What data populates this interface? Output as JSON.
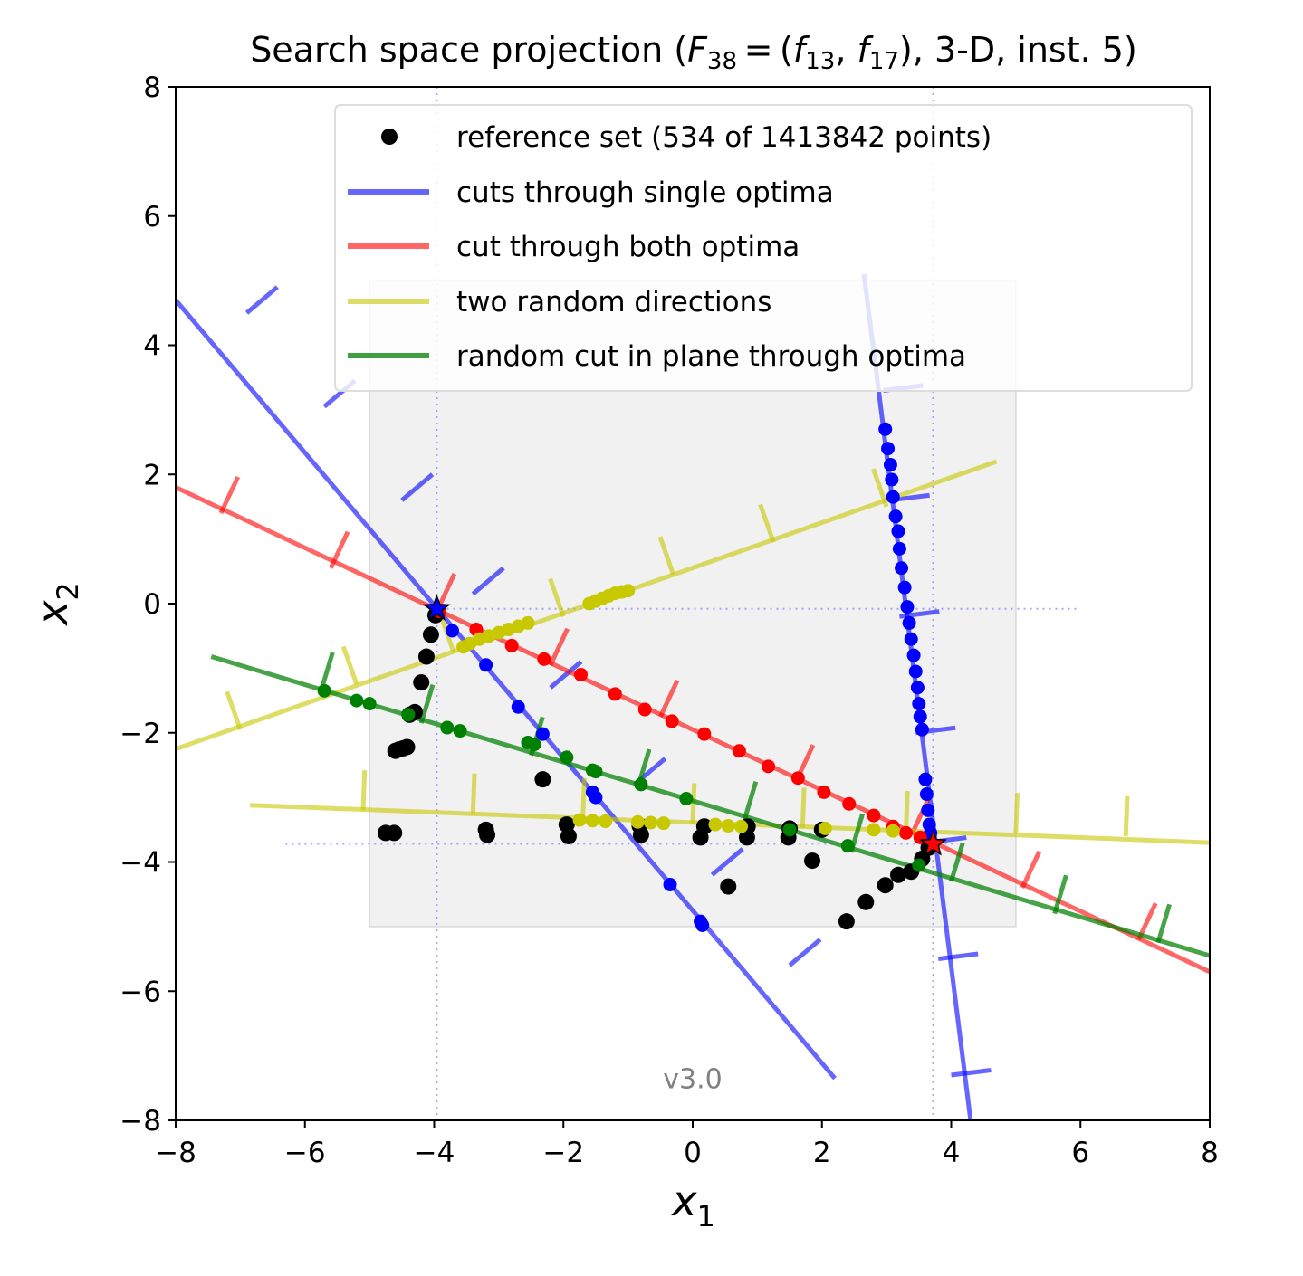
{
  "chart_data": {
    "type": "scatter",
    "title_parts": {
      "prefix": "Search space projection (",
      "F": "F",
      "F_sub": "38",
      "eq": " = (",
      "f1": "f",
      "f1_sub": "13",
      "comma": ", ",
      "f2": "f",
      "f2_sub": "17",
      "suffix": "), 3-D, inst. 5)"
    },
    "xlabel": "x",
    "xlabel_sub": "1",
    "ylabel": "x",
    "ylabel_sub": "2",
    "xlim": [
      -8,
      8
    ],
    "ylim": [
      -8,
      8
    ],
    "xticks": [
      -8,
      -6,
      -4,
      -2,
      0,
      2,
      4,
      6,
      8
    ],
    "yticks": [
      -8,
      -6,
      -4,
      -2,
      0,
      2,
      4,
      6,
      8
    ],
    "xtick_labels": [
      "−8",
      "−6",
      "−4",
      "−2",
      "0",
      "2",
      "4",
      "6",
      "8"
    ],
    "ytick_labels": [
      "−8",
      "−6",
      "−4",
      "−2",
      "0",
      "2",
      "4",
      "6",
      "8"
    ],
    "grid": false,
    "legend_position": "top-right",
    "watermark": "v3.0",
    "region_of_interest": {
      "x": [
        -5,
        5
      ],
      "y": [
        -5,
        5
      ]
    },
    "optima": [
      {
        "x": -3.96,
        "y": -0.08,
        "color": "#0000ff"
      },
      {
        "x": 3.72,
        "y": -3.72,
        "color": "#ff0000"
      }
    ],
    "optima_guides": {
      "x_values": [
        -3.96,
        3.72
      ],
      "y_values": [
        -0.08,
        -3.72
      ]
    },
    "series": [
      {
        "name": "reference set (534 of 1413842 points)",
        "color": "#000000",
        "marker": "dot",
        "points": [
          [
            -3.98,
            -0.18
          ],
          [
            -4.05,
            -0.48
          ],
          [
            -4.12,
            -0.82
          ],
          [
            -4.2,
            -1.22
          ],
          [
            -4.3,
            -1.68
          ],
          [
            -4.38,
            -1.72
          ],
          [
            -4.42,
            -2.22
          ],
          [
            -4.48,
            -2.24
          ],
          [
            -4.55,
            -2.26
          ],
          [
            -4.6,
            -2.28
          ],
          [
            -4.62,
            -3.55
          ],
          [
            -4.75,
            -3.55
          ],
          [
            -3.2,
            -3.5
          ],
          [
            -3.18,
            -3.58
          ],
          [
            -1.95,
            -3.42
          ],
          [
            -1.92,
            -3.6
          ],
          [
            -0.82,
            -3.44
          ],
          [
            -0.8,
            -3.58
          ],
          [
            0.18,
            -3.45
          ],
          [
            0.12,
            -3.62
          ],
          [
            0.85,
            -3.45
          ],
          [
            0.84,
            -3.62
          ],
          [
            1.5,
            -3.48
          ],
          [
            1.48,
            -3.62
          ],
          [
            2.0,
            -3.5
          ],
          [
            1.85,
            -3.98
          ],
          [
            -2.32,
            -2.72
          ],
          [
            0.55,
            -4.38
          ],
          [
            2.38,
            -4.92
          ],
          [
            2.68,
            -4.62
          ],
          [
            2.98,
            -4.36
          ],
          [
            3.18,
            -4.2
          ],
          [
            3.38,
            -4.15
          ],
          [
            3.55,
            -3.95
          ],
          [
            3.65,
            -3.78
          ]
        ]
      },
      {
        "name": "cuts through single optima",
        "color": "#0000ff",
        "marker": "line",
        "points": [
          [
            -3.72,
            -0.42
          ],
          [
            -3.2,
            -0.95
          ],
          [
            -2.7,
            -1.6
          ],
          [
            -2.32,
            -2.02
          ],
          [
            -1.55,
            -2.92
          ],
          [
            -1.5,
            -3.0
          ],
          [
            -0.35,
            -4.35
          ],
          [
            0.12,
            -4.92
          ],
          [
            0.15,
            -4.98
          ],
          [
            2.98,
            2.7
          ],
          [
            3.02,
            2.4
          ],
          [
            3.06,
            2.15
          ],
          [
            3.08,
            1.92
          ],
          [
            3.1,
            1.65
          ],
          [
            3.14,
            1.35
          ],
          [
            3.18,
            1.12
          ],
          [
            3.2,
            0.85
          ],
          [
            3.23,
            0.55
          ],
          [
            3.28,
            0.25
          ],
          [
            3.32,
            -0.05
          ],
          [
            3.35,
            -0.3
          ],
          [
            3.38,
            -0.55
          ],
          [
            3.42,
            -0.8
          ],
          [
            3.45,
            -1.05
          ],
          [
            3.48,
            -1.3
          ],
          [
            3.5,
            -1.55
          ],
          [
            3.52,
            -1.75
          ],
          [
            3.55,
            -1.95
          ],
          [
            3.6,
            -2.72
          ],
          [
            3.62,
            -2.95
          ],
          [
            3.64,
            -3.2
          ],
          [
            3.66,
            -3.42
          ],
          [
            3.68,
            -3.55
          ]
        ]
      },
      {
        "name": "cut through both optima",
        "color": "#ff0000",
        "marker": "line",
        "points": [
          [
            -3.92,
            -0.12
          ],
          [
            -3.35,
            -0.4
          ],
          [
            -2.8,
            -0.65
          ],
          [
            -2.3,
            -0.86
          ],
          [
            -1.73,
            -1.1
          ],
          [
            -1.2,
            -1.4
          ],
          [
            -0.74,
            -1.64
          ],
          [
            -0.32,
            -1.82
          ],
          [
            0.18,
            -2.02
          ],
          [
            0.72,
            -2.28
          ],
          [
            1.17,
            -2.52
          ],
          [
            1.63,
            -2.7
          ],
          [
            2.03,
            -2.92
          ],
          [
            2.42,
            -3.1
          ],
          [
            2.8,
            -3.28
          ],
          [
            3.1,
            -3.45
          ],
          [
            3.3,
            -3.55
          ],
          [
            3.52,
            -3.62
          ]
        ]
      },
      {
        "name": "two random directions",
        "color": "#c8c800",
        "marker": "line",
        "points": [
          [
            -3.55,
            -0.67
          ],
          [
            -3.45,
            -0.62
          ],
          [
            -3.3,
            -0.55
          ],
          [
            -3.15,
            -0.5
          ],
          [
            -3.0,
            -0.45
          ],
          [
            -2.85,
            -0.4
          ],
          [
            -2.7,
            -0.35
          ],
          [
            -2.55,
            -0.3
          ],
          [
            -1.6,
            0.0
          ],
          [
            -1.5,
            0.04
          ],
          [
            -1.4,
            0.08
          ],
          [
            -1.3,
            0.12
          ],
          [
            -1.2,
            0.16
          ],
          [
            -1.1,
            0.18
          ],
          [
            -1.0,
            0.2
          ],
          [
            -1.75,
            -3.35
          ],
          [
            -1.55,
            -3.36
          ],
          [
            -1.35,
            -3.37
          ],
          [
            -0.85,
            -3.38
          ],
          [
            -0.65,
            -3.39
          ],
          [
            -0.45,
            -3.4
          ],
          [
            0.35,
            -3.42
          ],
          [
            0.55,
            -3.44
          ],
          [
            0.75,
            -3.45
          ],
          [
            2.05,
            -3.48
          ],
          [
            2.8,
            -3.5
          ],
          [
            3.1,
            -3.52
          ]
        ]
      },
      {
        "name": "random cut in plane through optima",
        "color": "#008000",
        "marker": "line",
        "points": [
          [
            -5.7,
            -1.35
          ],
          [
            -5.2,
            -1.5
          ],
          [
            -5.0,
            -1.55
          ],
          [
            -4.4,
            -1.72
          ],
          [
            -3.8,
            -1.92
          ],
          [
            -3.6,
            -1.97
          ],
          [
            -2.55,
            -2.15
          ],
          [
            -2.45,
            -2.18
          ],
          [
            -1.95,
            -2.38
          ],
          [
            -1.55,
            -2.58
          ],
          [
            -1.5,
            -2.6
          ],
          [
            -0.8,
            -2.8
          ],
          [
            -0.1,
            -3.02
          ],
          [
            1.5,
            -3.5
          ],
          [
            2.4,
            -3.75
          ],
          [
            3.5,
            -4.05
          ]
        ]
      }
    ],
    "cut_lines": [
      {
        "color": "#0000ff",
        "points": [
          [
            -8,
            4.7
          ],
          [
            2.2,
            -7.35
          ]
        ],
        "ticks": [
          [
            -6.9,
            4.5
          ],
          [
            -5.7,
            3.05
          ],
          [
            -4.5,
            1.6
          ],
          [
            -3.4,
            0.15
          ],
          [
            -2.2,
            -1.3
          ],
          [
            -0.9,
            -2.8
          ],
          [
            0.3,
            -4.2
          ],
          [
            1.5,
            -5.6
          ]
        ]
      },
      {
        "color": "#0000ff",
        "points": [
          [
            2.65,
            5.1
          ],
          [
            4.3,
            -8.0
          ]
        ],
        "ticks": [
          [
            2.95,
            3.3
          ],
          [
            3.05,
            1.6
          ],
          [
            3.2,
            -0.2
          ],
          [
            3.45,
            -2.0
          ],
          [
            3.62,
            -3.7
          ],
          [
            3.8,
            -5.5
          ],
          [
            4.0,
            -7.3
          ]
        ]
      },
      {
        "color": "#ff0000",
        "points": [
          [
            -8,
            1.8
          ],
          [
            8,
            -5.7
          ]
        ],
        "ticks": [
          [
            -7.3,
            1.4
          ],
          [
            -5.6,
            0.55
          ],
          [
            -3.95,
            -0.1
          ],
          [
            -2.2,
            -0.95
          ],
          [
            -0.5,
            -1.75
          ],
          [
            1.6,
            -2.75
          ],
          [
            3.4,
            -3.55
          ],
          [
            5.1,
            -4.4
          ],
          [
            6.9,
            -5.2
          ]
        ]
      },
      {
        "color": "#c8c800",
        "points": [
          [
            -8,
            -2.25
          ],
          [
            4.7,
            2.2
          ]
        ],
        "ticks": [
          [
            -7.0,
            -1.95
          ],
          [
            -5.2,
            -1.25
          ],
          [
            -3.7,
            -0.75
          ],
          [
            -2.0,
            -0.2
          ],
          [
            -0.3,
            0.45
          ],
          [
            1.25,
            0.95
          ],
          [
            3.0,
            1.5
          ]
        ]
      },
      {
        "color": "#c8c800",
        "points": [
          [
            -6.85,
            -3.12
          ],
          [
            8.0,
            -3.7
          ]
        ],
        "ticks": [
          [
            -5.1,
            -3.2
          ],
          [
            -3.4,
            -3.25
          ],
          [
            -1.7,
            -3.32
          ],
          [
            0.0,
            -3.4
          ],
          [
            1.7,
            -3.47
          ],
          [
            3.3,
            -3.52
          ],
          [
            5.0,
            -3.55
          ],
          [
            6.7,
            -3.6
          ]
        ]
      },
      {
        "color": "#008000",
        "points": [
          [
            -7.45,
            -0.82
          ],
          [
            8.0,
            -5.45
          ]
        ],
        "ticks": [
          [
            -5.75,
            -1.35
          ],
          [
            -4.2,
            -1.85
          ],
          [
            -2.5,
            -2.35
          ],
          [
            -0.85,
            -2.85
          ],
          [
            0.8,
            -3.35
          ],
          [
            2.45,
            -3.85
          ],
          [
            4.0,
            -4.3
          ],
          [
            5.6,
            -4.8
          ],
          [
            7.2,
            -5.25
          ]
        ]
      }
    ],
    "tick_half_length": 0.62
  }
}
